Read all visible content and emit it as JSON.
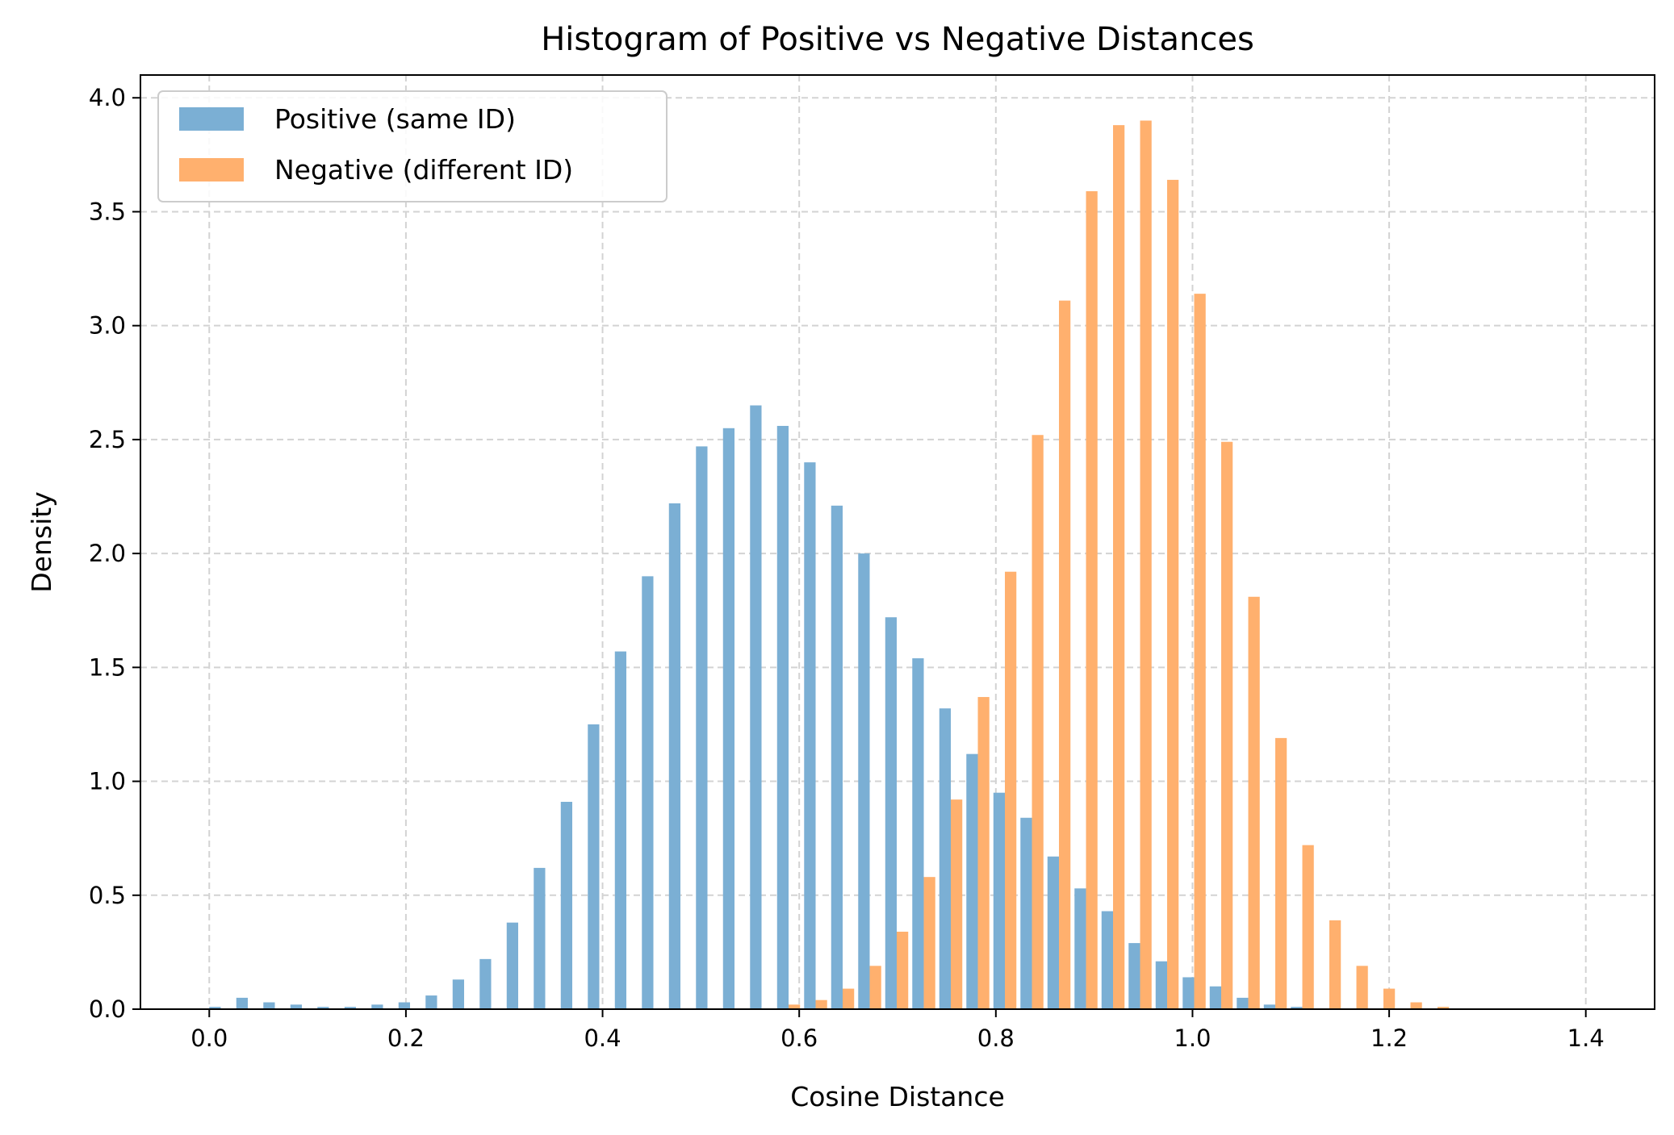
{
  "chart_data": {
    "type": "bar",
    "title": "Histogram of Positive vs Negative Distances",
    "xlabel": "Cosine Distance",
    "ylabel": "Density",
    "xlim": [
      -0.07,
      1.47
    ],
    "ylim": [
      0.0,
      4.1
    ],
    "xticks": [
      "0.0",
      "0.2",
      "0.4",
      "0.6",
      "0.8",
      "1.0",
      "1.2",
      "1.4"
    ],
    "xtick_values": [
      0.0,
      0.2,
      0.4,
      0.6,
      0.8,
      1.0,
      1.2,
      1.4
    ],
    "yticks": [
      "0.0",
      "0.5",
      "1.0",
      "1.5",
      "2.0",
      "2.5",
      "3.0",
      "3.5",
      "4.0"
    ],
    "ytick_values": [
      0.0,
      0.5,
      1.0,
      1.5,
      2.0,
      2.5,
      3.0,
      3.5,
      4.0
    ],
    "grid": true,
    "legend_position": "top-left",
    "bin_start": 0.0,
    "bin_width": 0.0275,
    "series": [
      {
        "name": "Positive (same ID)",
        "color": "#7bafd4",
        "values": [
          0.01,
          0.05,
          0.03,
          0.02,
          0.01,
          0.01,
          0.02,
          0.03,
          0.06,
          0.13,
          0.22,
          0.38,
          0.62,
          0.91,
          1.25,
          1.57,
          1.9,
          2.22,
          2.47,
          2.55,
          2.65,
          2.56,
          2.4,
          2.21,
          2.0,
          1.72,
          1.54,
          1.32,
          1.12,
          0.95,
          0.84,
          0.67,
          0.53,
          0.43,
          0.29,
          0.21,
          0.14,
          0.1,
          0.05,
          0.02,
          0.01,
          0.0,
          0.0,
          0.0,
          0.0,
          0.0,
          0.0,
          0.0
        ]
      },
      {
        "name": "Negative (different ID)",
        "color": "#ffb06e",
        "values": [
          0.0,
          0.0,
          0.0,
          0.0,
          0.0,
          0.0,
          0.0,
          0.0,
          0.0,
          0.0,
          0.0,
          0.0,
          0.0,
          0.0,
          0.0,
          0.0,
          0.0,
          0.0,
          0.0,
          0.0,
          0.0,
          0.02,
          0.04,
          0.09,
          0.19,
          0.34,
          0.58,
          0.92,
          1.37,
          1.92,
          2.52,
          3.11,
          3.59,
          3.88,
          3.9,
          3.64,
          3.14,
          2.49,
          1.81,
          1.19,
          0.72,
          0.39,
          0.19,
          0.09,
          0.03,
          0.01,
          0.0,
          0.0
        ]
      }
    ]
  }
}
